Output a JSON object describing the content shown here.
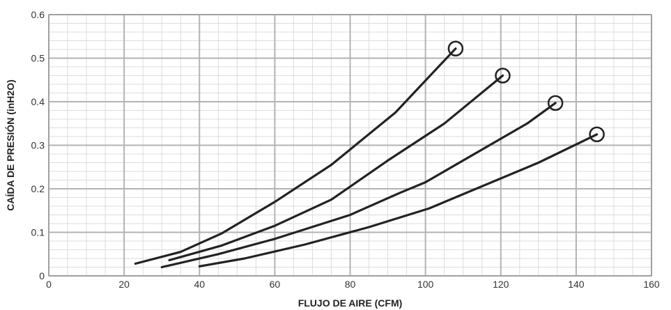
{
  "chart_data": {
    "type": "line",
    "title": "",
    "xlabel": "FLUJO DE AIRE (CFM)",
    "ylabel": "CAÍDA DE PRESIÓN (inH2O)",
    "xlim": [
      0,
      160
    ],
    "ylim": [
      0,
      0.6
    ],
    "x_ticks": [
      0,
      20,
      40,
      60,
      80,
      100,
      120,
      140,
      160
    ],
    "y_ticks": [
      0,
      0.1,
      0.2,
      0.3,
      0.4,
      0.5,
      0.6
    ],
    "x_tick_labels": [
      "0",
      "20",
      "40",
      "60",
      "80",
      "100",
      "120",
      "140",
      "160"
    ],
    "y_tick_labels": [
      "0",
      "0.1",
      "0.2",
      "0.3",
      "0.4",
      "0.5",
      "0.6"
    ],
    "grid": true,
    "minor_grid": true,
    "legend": "none",
    "line_color": "#222222",
    "grid_major_color": "#b3b3b3",
    "grid_minor_color": "#dcdcdc",
    "series": [
      {
        "x": [
          23,
          35,
          46,
          60,
          75,
          92,
          108
        ],
        "y": [
          0.028,
          0.055,
          0.098,
          0.17,
          0.255,
          0.375,
          0.522
        ],
        "end_marker": "circle"
      },
      {
        "x": [
          32,
          46,
          60,
          75,
          90,
          105,
          120.5
        ],
        "y": [
          0.036,
          0.07,
          0.115,
          0.175,
          0.265,
          0.35,
          0.46
        ],
        "end_marker": "circle"
      },
      {
        "x": [
          30,
          45,
          60,
          80,
          93,
          100,
          127,
          134.5
        ],
        "y": [
          0.02,
          0.05,
          0.085,
          0.14,
          0.19,
          0.215,
          0.35,
          0.397
        ],
        "end_marker": "circle"
      },
      {
        "x": [
          40,
          52,
          68,
          85,
          101,
          130,
          145.5
        ],
        "y": [
          0.022,
          0.04,
          0.072,
          0.112,
          0.155,
          0.26,
          0.325
        ],
        "end_marker": "circle"
      }
    ]
  }
}
